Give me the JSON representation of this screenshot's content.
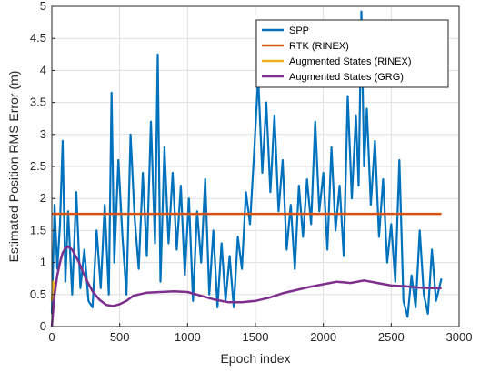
{
  "chart_data": {
    "type": "line",
    "title": "",
    "xlabel": "Epoch index",
    "ylabel": "Estimated Position RMS Error (m)",
    "xlim": [
      0,
      3000
    ],
    "ylim": [
      0,
      5
    ],
    "xticks": [
      0,
      500,
      1000,
      1500,
      2000,
      2500,
      3000
    ],
    "yticks": [
      0,
      0.5,
      1,
      1.5,
      2,
      2.5,
      3,
      3.5,
      4,
      4.5,
      5
    ],
    "ytick_labels": [
      "0",
      "0.5",
      "1",
      "1.5",
      "2",
      "2.5",
      "3",
      "3.5",
      "4",
      "4.5",
      "5"
    ],
    "grid": true,
    "legend_position": "top-right",
    "series": [
      {
        "name": "SPP",
        "color": "#0072BD",
        "x": [
          0,
          20,
          40,
          60,
          80,
          100,
          120,
          150,
          180,
          210,
          240,
          270,
          300,
          330,
          360,
          390,
          420,
          440,
          460,
          490,
          520,
          550,
          580,
          610,
          640,
          670,
          700,
          730,
          760,
          780,
          800,
          830,
          860,
          890,
          920,
          950,
          980,
          1010,
          1040,
          1070,
          1100,
          1130,
          1160,
          1190,
          1220,
          1250,
          1280,
          1310,
          1340,
          1370,
          1400,
          1430,
          1460,
          1490,
          1520,
          1550,
          1580,
          1610,
          1640,
          1670,
          1700,
          1730,
          1760,
          1790,
          1820,
          1850,
          1880,
          1910,
          1940,
          1970,
          2000,
          2030,
          2060,
          2090,
          2120,
          2150,
          2180,
          2210,
          2240,
          2260,
          2280,
          2300,
          2320,
          2350,
          2380,
          2410,
          2440,
          2470,
          2500,
          2530,
          2560,
          2590,
          2620,
          2650,
          2680,
          2710,
          2740,
          2770,
          2800,
          2830,
          2870
        ],
        "values": [
          0.2,
          1.9,
          0.9,
          1.6,
          2.9,
          0.7,
          1.8,
          0.5,
          2.1,
          0.6,
          1.2,
          0.4,
          0.3,
          1.5,
          0.6,
          1.9,
          0.5,
          3.65,
          1.0,
          2.6,
          1.4,
          0.5,
          3.0,
          1.7,
          0.9,
          2.4,
          1.1,
          3.2,
          1.3,
          4.25,
          0.7,
          2.8,
          1.3,
          2.4,
          1.2,
          2.2,
          0.8,
          2.0,
          0.4,
          1.8,
          1.0,
          2.3,
          0.5,
          1.5,
          0.3,
          1.3,
          0.4,
          1.1,
          0.3,
          1.4,
          0.9,
          2.1,
          1.6,
          2.7,
          3.9,
          2.4,
          3.5,
          2.1,
          3.3,
          1.8,
          2.6,
          1.2,
          1.9,
          0.9,
          2.2,
          1.4,
          2.3,
          1.6,
          3.2,
          1.8,
          2.4,
          1.2,
          2.8,
          1.5,
          2.2,
          1.1,
          3.6,
          2.0,
          3.3,
          2.2,
          4.92,
          2.5,
          3.4,
          1.9,
          2.9,
          1.4,
          2.3,
          1.0,
          1.6,
          0.7,
          2.6,
          0.4,
          0.15,
          0.8,
          0.3,
          1.5,
          0.5,
          0.2,
          1.2,
          0.4,
          0.75
        ]
      },
      {
        "name": "RTK (RINEX)",
        "color": "#D95319",
        "x": [
          0,
          2870
        ],
        "values": [
          1.76,
          1.76
        ]
      },
      {
        "name": "Augmented States (RINEX)",
        "color": "#EDB120",
        "x": [
          0,
          10,
          20,
          30
        ],
        "values": [
          0.4,
          0.7,
          0.55,
          0.6
        ]
      },
      {
        "name": "Augmented States (GRG)",
        "color": "#7E2F8E",
        "x": [
          0,
          20,
          40,
          60,
          80,
          100,
          120,
          150,
          200,
          250,
          300,
          350,
          400,
          450,
          500,
          550,
          600,
          700,
          800,
          900,
          1000,
          1100,
          1200,
          1300,
          1400,
          1500,
          1600,
          1700,
          1800,
          1900,
          2000,
          2100,
          2200,
          2300,
          2400,
          2500,
          2600,
          2700,
          2800,
          2870
        ],
        "values": [
          0.0,
          0.5,
          0.8,
          1.0,
          1.15,
          1.22,
          1.25,
          1.2,
          1.0,
          0.75,
          0.55,
          0.42,
          0.34,
          0.32,
          0.35,
          0.4,
          0.48,
          0.53,
          0.54,
          0.55,
          0.54,
          0.48,
          0.42,
          0.38,
          0.38,
          0.4,
          0.45,
          0.52,
          0.57,
          0.62,
          0.66,
          0.7,
          0.68,
          0.72,
          0.68,
          0.64,
          0.63,
          0.61,
          0.6,
          0.6
        ]
      }
    ]
  }
}
